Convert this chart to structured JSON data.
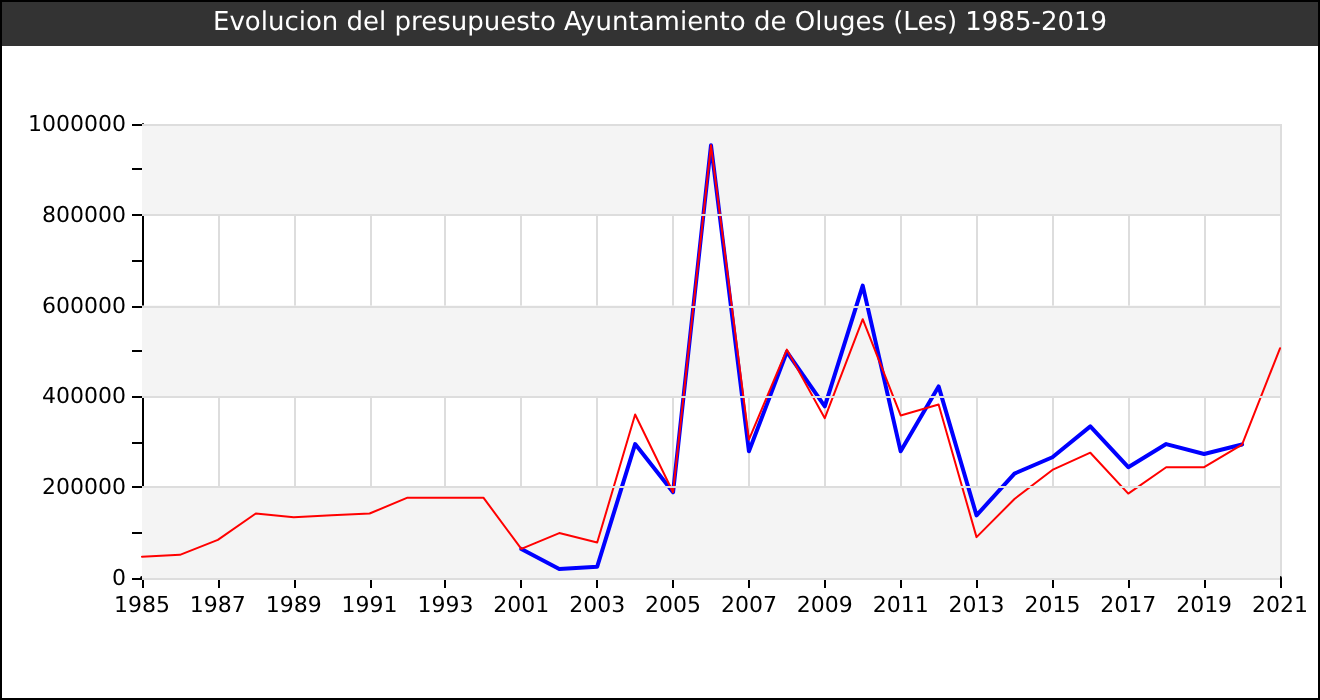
{
  "chart_data": {
    "type": "line",
    "title": "Evolucion del presupuesto Ayuntamiento de Oluges (Les) 1985-2019",
    "categories": [
      "1985",
      null,
      "1987",
      null,
      "1989",
      null,
      "1991",
      null,
      "1993",
      null,
      "2001",
      null,
      "2003",
      null,
      "2005",
      null,
      "2007",
      null,
      "2009",
      null,
      "2011",
      null,
      "2013",
      null,
      "2015",
      null,
      "2017",
      null,
      "2019",
      null,
      "2021"
    ],
    "series": [
      {
        "color": "#0000ff",
        "values": [
          null,
          null,
          null,
          null,
          null,
          null,
          null,
          null,
          null,
          null,
          64000,
          20000,
          25000,
          295000,
          189000,
          953000,
          279000,
          498000,
          378000,
          644000,
          279000,
          422000,
          138000,
          230000,
          266000,
          334000,
          244000,
          295000,
          273000,
          294000,
          null
        ]
      },
      {
        "color": "#ff0000",
        "values": [
          47000,
          51000,
          84000,
          142000,
          134000,
          138000,
          142000,
          177000,
          177000,
          177000,
          64000,
          99000,
          78000,
          360000,
          189000,
          953000,
          305000,
          503000,
          352000,
          570000,
          358000,
          382000,
          90000,
          174000,
          238000,
          276000,
          186000,
          244000,
          244000,
          294000,
          506000
        ]
      }
    ],
    "ylim": [
      0,
      1000000
    ],
    "yticks": [
      0,
      {
        "value": 100000,
        "label": null
      },
      200000,
      {
        "value": 300000,
        "label": null
      },
      400000,
      {
        "value": 500000,
        "label": null
      },
      600000,
      {
        "value": 700000,
        "label": null
      },
      800000,
      {
        "value": 900000,
        "label": null
      },
      1000000
    ],
    "grid": true,
    "marker": "none",
    "line_style": "solid"
  }
}
